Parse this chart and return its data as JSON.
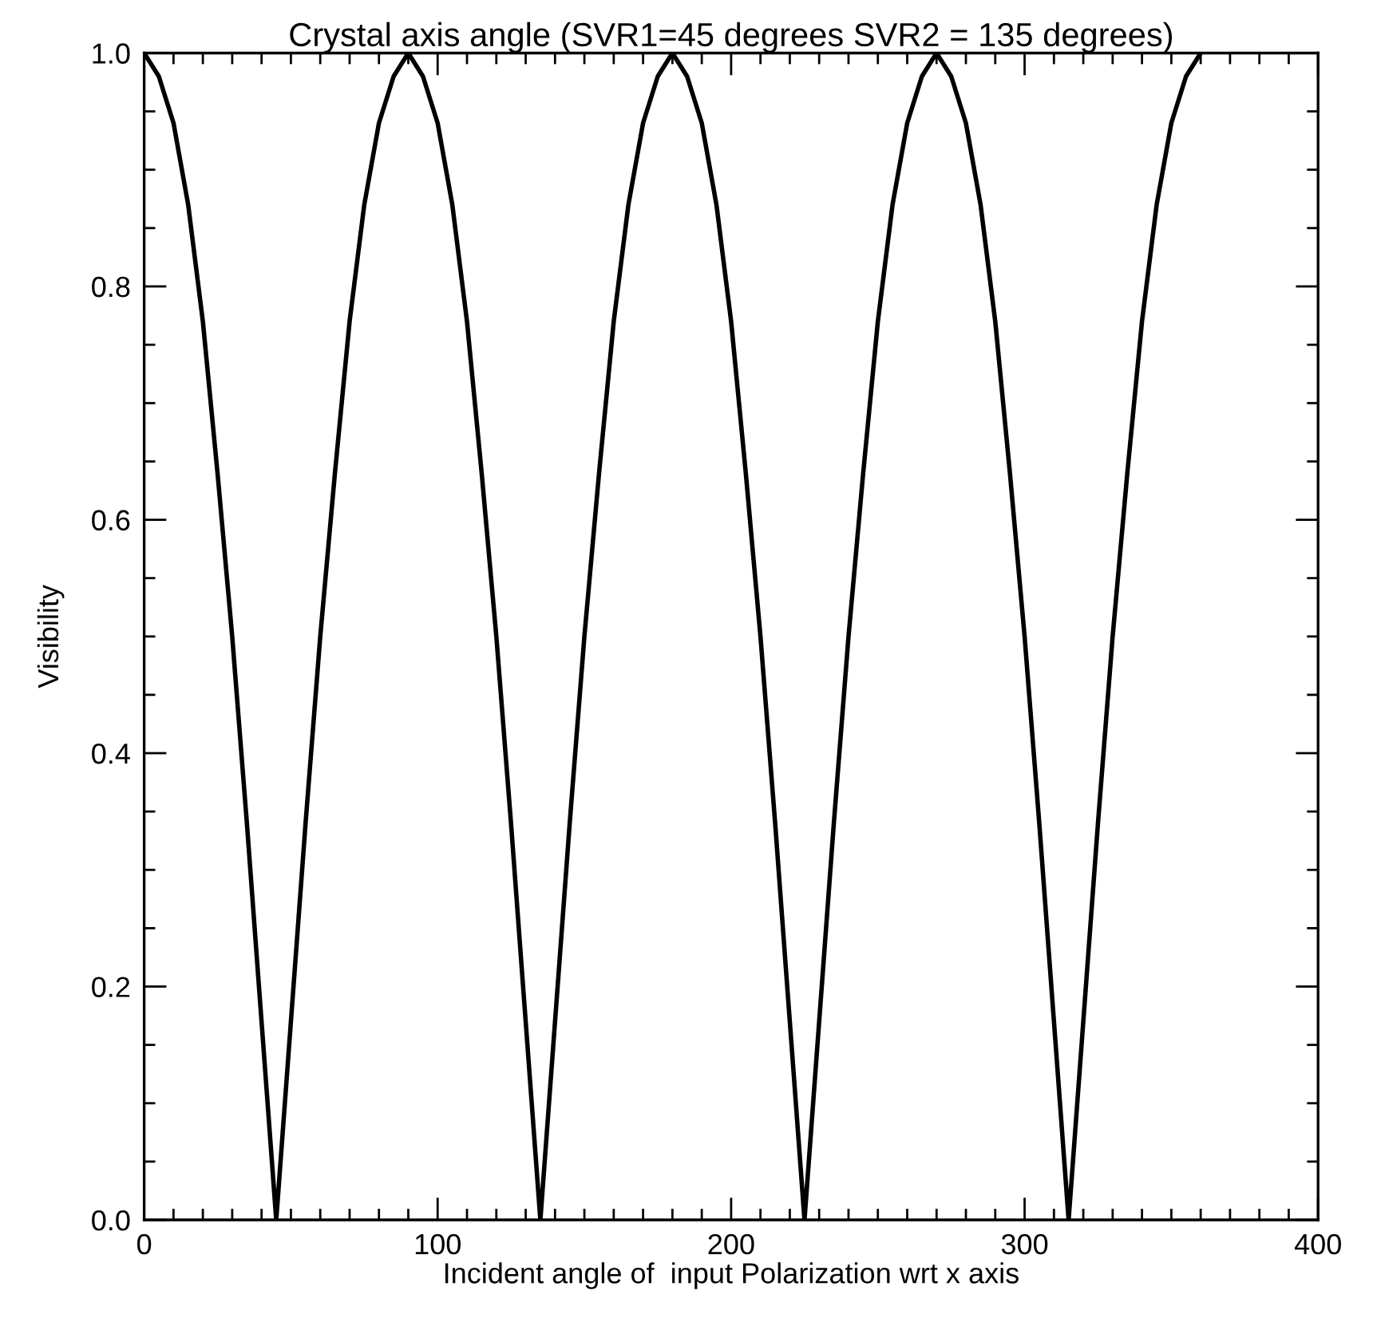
{
  "chart_data": {
    "type": "line",
    "title": "Crystal axis angle (SVR1=45 degrees SVR2 = 135 degrees)",
    "xlabel": "Incident angle of  input Polarization wrt x axis",
    "ylabel": "Visibility",
    "x": [
      0,
      5,
      10,
      15,
      20,
      25,
      30,
      35,
      40,
      45,
      50,
      55,
      60,
      65,
      70,
      75,
      80,
      85,
      90,
      95,
      100,
      105,
      110,
      115,
      120,
      125,
      130,
      135,
      140,
      145,
      150,
      155,
      160,
      165,
      170,
      175,
      180,
      185,
      190,
      195,
      200,
      205,
      210,
      215,
      220,
      225,
      230,
      235,
      240,
      245,
      250,
      255,
      260,
      265,
      270,
      275,
      280,
      285,
      290,
      295,
      300,
      305,
      310,
      315,
      320,
      325,
      330,
      335,
      340,
      345,
      350,
      355,
      360
    ],
    "series": [
      {
        "color": "#000000",
        "values": [
          1.0,
          0.98,
          0.94,
          0.87,
          0.77,
          0.64,
          0.5,
          0.34,
          0.17,
          0.0,
          0.17,
          0.34,
          0.5,
          0.64,
          0.77,
          0.87,
          0.94,
          0.98,
          1.0,
          0.98,
          0.94,
          0.87,
          0.77,
          0.64,
          0.5,
          0.34,
          0.17,
          0.0,
          0.17,
          0.34,
          0.5,
          0.64,
          0.77,
          0.87,
          0.94,
          0.98,
          1.0,
          0.98,
          0.94,
          0.87,
          0.77,
          0.64,
          0.5,
          0.34,
          0.17,
          0.0,
          0.17,
          0.34,
          0.5,
          0.64,
          0.77,
          0.87,
          0.94,
          0.98,
          1.0,
          0.98,
          0.94,
          0.87,
          0.77,
          0.64,
          0.5,
          0.34,
          0.17,
          0.0,
          0.17,
          0.34,
          0.5,
          0.64,
          0.77,
          0.87,
          0.94,
          0.98,
          1.0
        ]
      }
    ],
    "xlim": [
      0,
      400
    ],
    "xticks": [
      0,
      100,
      200,
      300,
      400
    ],
    "ylim": [
      0,
      1.0
    ],
    "yticks": [
      {
        "value": 0,
        "label": "0.0"
      },
      {
        "value": 0.2,
        "label": "0.2"
      },
      {
        "value": 0.4,
        "label": "0.4"
      },
      {
        "value": 0.6,
        "label": "0.6"
      },
      {
        "value": 0.8,
        "label": "0.8"
      },
      {
        "value": 1.0,
        "label": "1.0"
      }
    ],
    "grid": false,
    "marker": "none",
    "line_style": "solid"
  }
}
